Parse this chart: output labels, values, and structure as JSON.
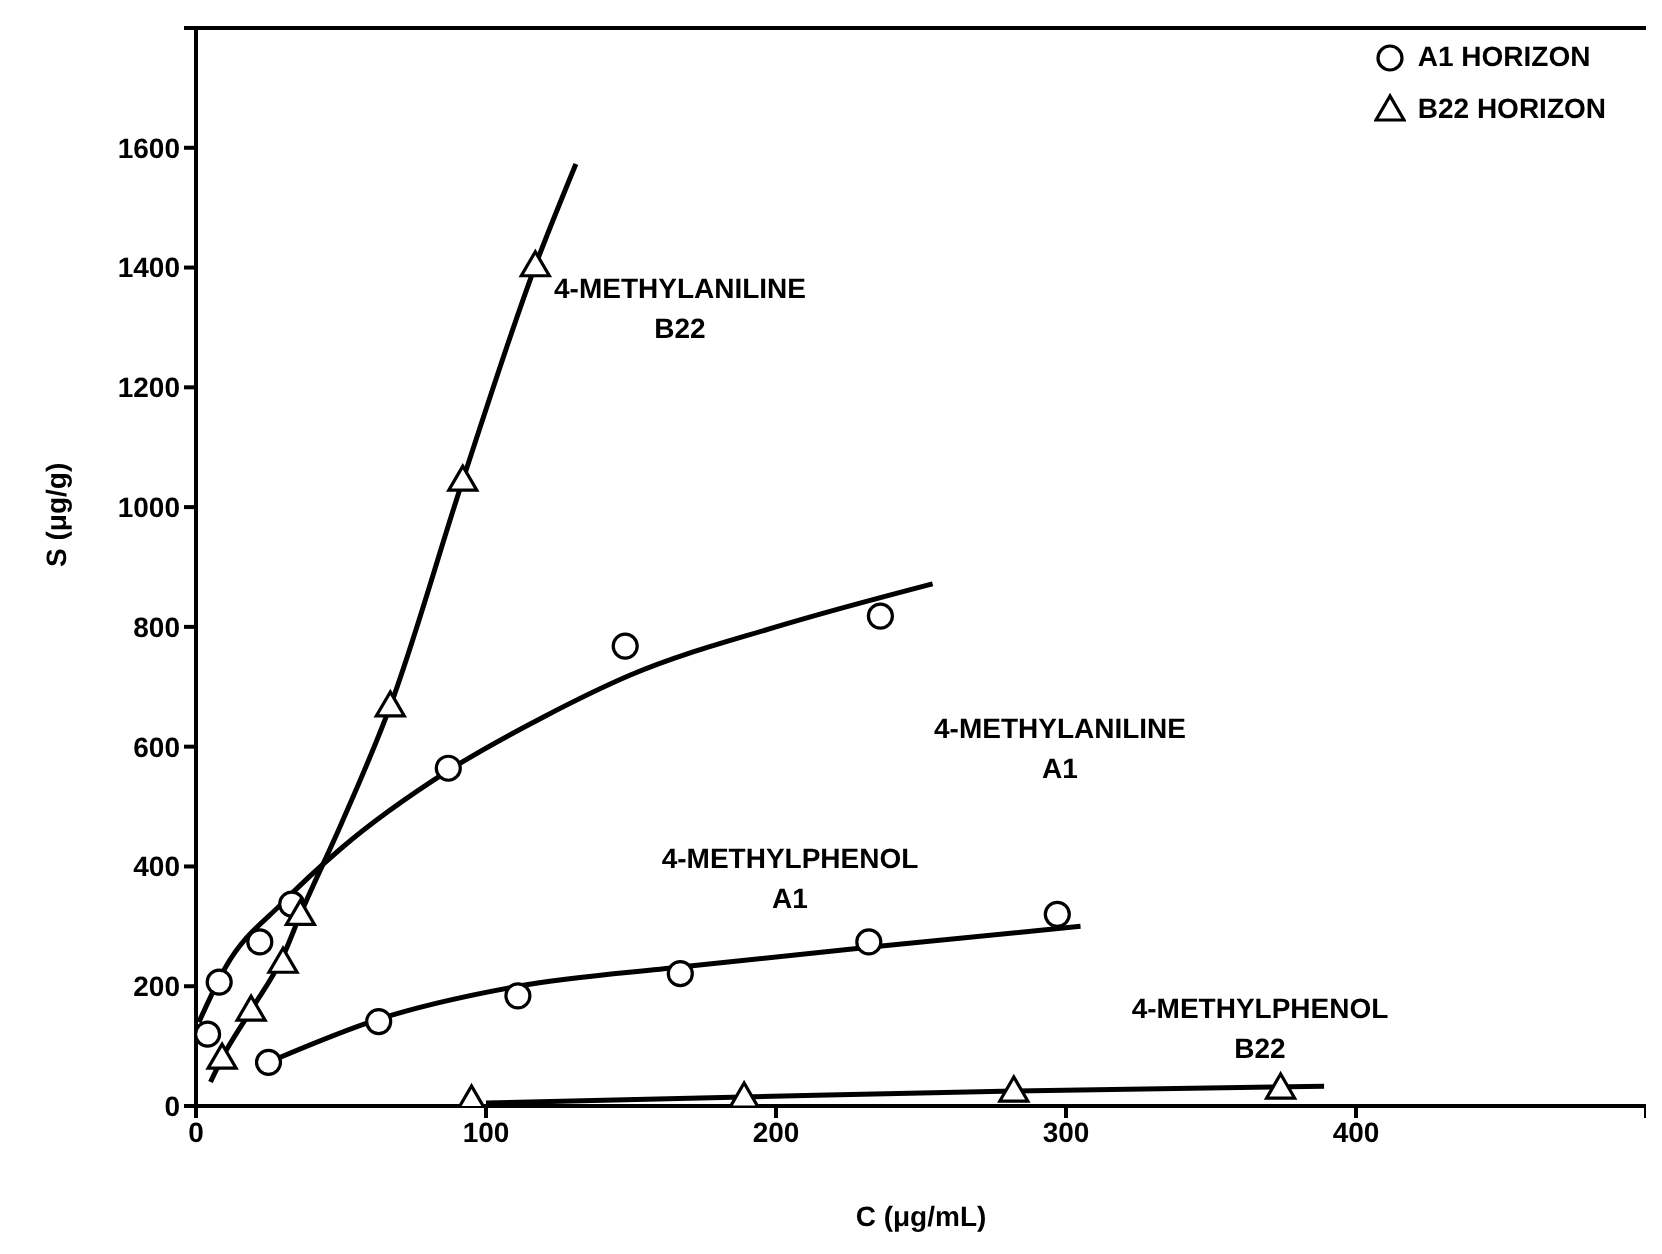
{
  "chart_data": {
    "type": "scatter",
    "xlabel": "C (μg/mL)",
    "ylabel": "S (μg/g)",
    "xlim": [
      0,
      500
    ],
    "xticks": [
      0,
      100,
      200,
      300,
      400,
      {
        "value": 500,
        "label": null
      }
    ],
    "ylim": [
      0,
      1800
    ],
    "yticks": [
      0,
      200,
      400,
      600,
      800,
      1000,
      1200,
      1400,
      1600,
      {
        "value": 1800,
        "label": null
      }
    ],
    "legend": "top right",
    "series": [
      {
        "name": "A1 HORIZON",
        "marker": "circle",
        "color": "#000000",
        "x": [
          4,
          8,
          22,
          33,
          87,
          148,
          236,
          25,
          63,
          111,
          167,
          232,
          297
        ],
        "values": [
          120,
          207,
          274,
          337,
          564,
          768,
          818,
          73,
          141,
          184,
          221,
          274,
          320
        ]
      },
      {
        "name": "B22 HORIZON",
        "marker": "triangle",
        "color": "#000000",
        "x": [
          9,
          19,
          30,
          36,
          67,
          92,
          117,
          95,
          189,
          282,
          374
        ],
        "values": [
          80,
          160,
          240,
          320,
          668,
          1045,
          1403,
          10,
          15,
          25,
          30
        ]
      },
      {
        "type": "line",
        "marker": "none",
        "color": "#000000",
        "x": [
          5,
          9,
          19,
          30,
          36,
          50,
          67,
          92,
          117,
          131
        ],
        "values": [
          40,
          80,
          160,
          250,
          320,
          470,
          668,
          1045,
          1403,
          1573
        ]
      },
      {
        "type": "line",
        "marker": "none",
        "color": "#000000",
        "x": [
          1,
          10,
          30,
          50,
          87,
          120,
          150,
          200,
          254
        ],
        "values": [
          140,
          230,
          340,
          430,
          560,
          650,
          720,
          800,
          872
        ]
      },
      {
        "type": "line",
        "marker": "none",
        "color": "#000000",
        "x": [
          25,
          63,
          111,
          167,
          232,
          305
        ],
        "values": [
          73,
          145,
          200,
          232,
          265,
          300
        ]
      },
      {
        "type": "line",
        "marker": "none",
        "color": "#000000",
        "x": [
          100,
          189,
          282,
          389
        ],
        "values": [
          5,
          15,
          25,
          33
        ]
      }
    ],
    "annotations": [
      "4-METHYLANILINE\nB22",
      "4-METHYLANILINE\nA1",
      "4-METHYLPHENOL\nA1",
      "4-METHYLPHENOL\nB22"
    ]
  }
}
